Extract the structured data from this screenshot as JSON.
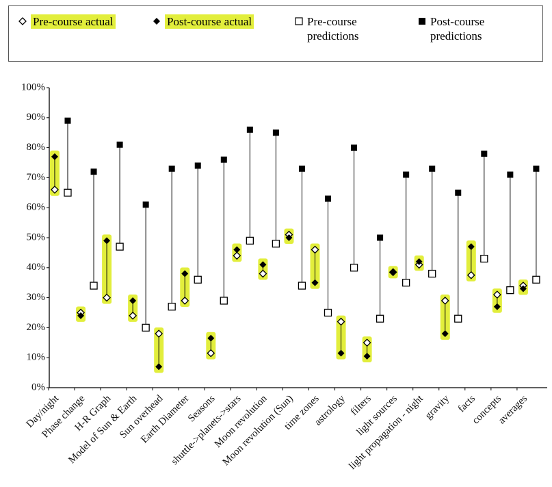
{
  "chart_data": {
    "type": "dumbbell",
    "categories": [
      "Day/night",
      "Phase change",
      "H-R Graph",
      "Model of Sun & Earth",
      "Sun overhead",
      "Earth Diameter",
      "Seasons",
      "shuttle->planets->stars",
      "Moon revolution",
      "Moon revolution (Sun)",
      "time zones",
      "astrology",
      "filters",
      "light sources",
      "light propagation - night",
      "gravity",
      "facts",
      "concepts",
      "averages"
    ],
    "series": [
      {
        "name": "Pre-course actual",
        "color": "#000000",
        "values": [
          66,
          25,
          30,
          24,
          18,
          29,
          11.5,
          44,
          38,
          51,
          46,
          22,
          15,
          38.5,
          41,
          29,
          37.5,
          31,
          34
        ]
      },
      {
        "name": "Post-course actual",
        "color": "#000000",
        "values": [
          77,
          24,
          49,
          29,
          7,
          38,
          16.5,
          46,
          41,
          50,
          35,
          11.5,
          10.5,
          38.5,
          42,
          18,
          47,
          27,
          33
        ]
      },
      {
        "name": "Pre-course predictions",
        "color": "#000000",
        "values": [
          65,
          34,
          47,
          20,
          27,
          36,
          29,
          49,
          48,
          34,
          25,
          40,
          23,
          35,
          38,
          23,
          43,
          32.5,
          36
        ]
      },
      {
        "name": "Post-course predictions",
        "color": "#000000",
        "values": [
          89,
          72,
          81,
          61,
          73,
          74,
          76,
          86,
          85,
          73,
          63,
          80,
          50,
          71,
          73,
          65,
          78,
          71,
          73
        ]
      }
    ],
    "highlight_color": "#e2ee3c",
    "ylim": [
      0,
      100
    ],
    "yticks": [
      {
        "value": 0,
        "label": "0%"
      },
      {
        "value": 10,
        "label": "10%"
      },
      {
        "value": 20,
        "label": "20%"
      },
      {
        "value": 30,
        "label": "30%"
      },
      {
        "value": 40,
        "label": "40%"
      },
      {
        "value": 50,
        "label": "50%"
      },
      {
        "value": 60,
        "label": "60%"
      },
      {
        "value": 70,
        "label": "70%"
      },
      {
        "value": 80,
        "label": "80%"
      },
      {
        "value": 90,
        "label": "90%"
      },
      {
        "value": 100,
        "label": "100%"
      }
    ]
  }
}
